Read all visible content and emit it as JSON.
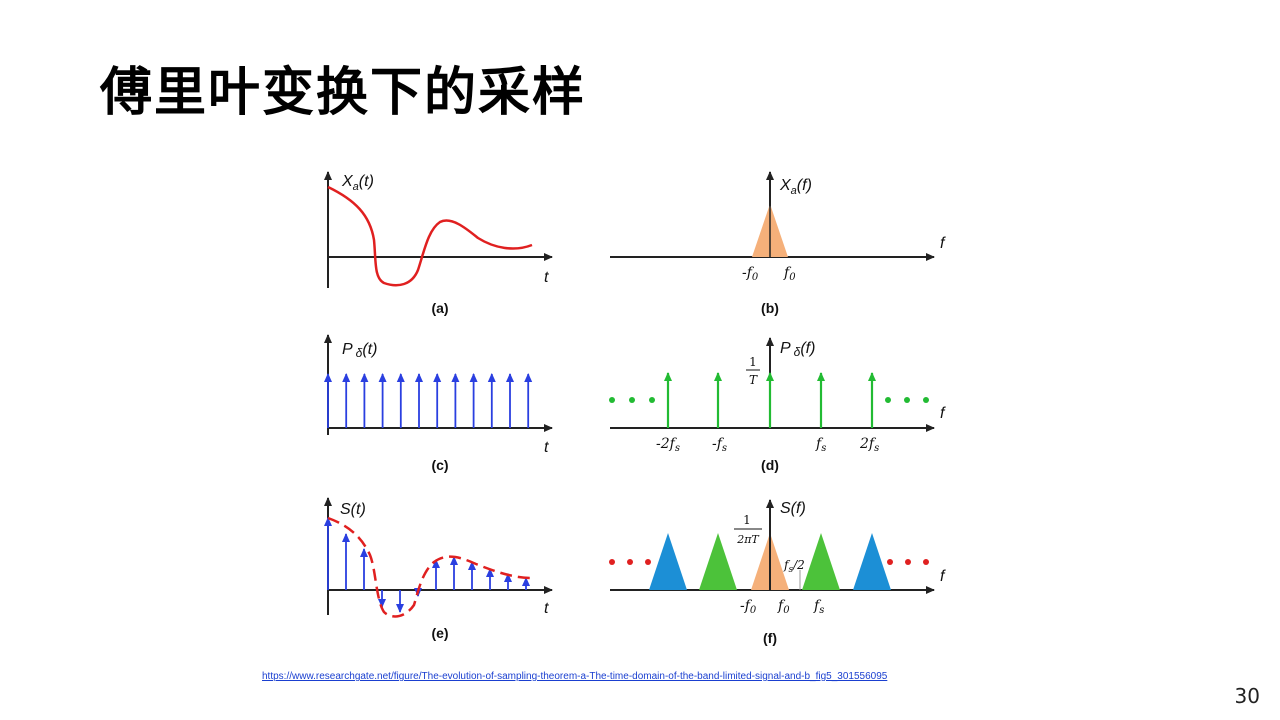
{
  "slide": {
    "title": "傅里叶变换下的采样",
    "source_url": "https://www.researchgate.net/figure/The-evolution-of-sampling-theorem-a-The-time-domain-of-the-band-limited-signal-and-b_fig5_301556095",
    "page_number": "30"
  },
  "figure": {
    "panels": [
      {
        "id": "a",
        "caption": "(a)",
        "ylabel_main": "X",
        "ylabel_sub": "a",
        "ylabel_arg": "(t)",
        "xlabel": "t"
      },
      {
        "id": "b",
        "caption": "(b)",
        "ylabel_main": "X",
        "ylabel_sub": "a",
        "ylabel_arg": "(f)",
        "xlabel": "f",
        "tick_left": "-f",
        "tick_left_sub": "0",
        "tick_right": "f",
        "tick_right_sub": "0"
      },
      {
        "id": "c",
        "caption": "(c)",
        "ylabel_main": "P",
        "ylabel_sub": "δ",
        "ylabel_arg": "(t)",
        "xlabel": "t"
      },
      {
        "id": "d",
        "caption": "(d)",
        "ylabel_main": "P",
        "ylabel_sub": "δ",
        "ylabel_arg": "(f)",
        "xlabel": "f",
        "frac_num": "1",
        "frac_den": "T",
        "ticks": [
          "-2f",
          "-f",
          "f",
          "2f"
        ],
        "tick_sub": "s"
      },
      {
        "id": "e",
        "caption": "(e)",
        "ylabel_main": "S(t)",
        "xlabel": "t"
      },
      {
        "id": "f",
        "caption": "(f)",
        "ylabel_main": "S(f)",
        "xlabel": "f",
        "frac_num": "1",
        "frac_den": "2πT",
        "half_label": "f",
        "half_sub": "s",
        "half_suffix": "/2",
        "tick_left": "-f",
        "tick_left_sub": "0",
        "tick_mid": "f",
        "tick_mid_sub": "0",
        "tick_right": "f",
        "tick_right_sub": "s"
      }
    ],
    "colors": {
      "axis": "#222222",
      "signal": "#e02020",
      "impulse_time": "#2a3fe0",
      "impulse_freq": "#22bb33",
      "spectrum_base": "#f5b07a",
      "spectrum_blue": "#1c8fd6",
      "spectrum_green": "#4cc23a",
      "dots_green": "#22bb33",
      "dots_red": "#e02020"
    }
  }
}
